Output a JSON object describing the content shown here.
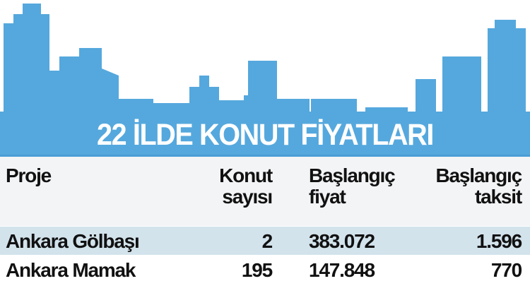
{
  "title": "22 İLDE KONUT FİYATLARI",
  "colors": {
    "banner": "#55a8dd",
    "header_bg": "#f3f4f6",
    "highlight_row": "#d3e3ec",
    "text": "#111111"
  },
  "table": {
    "headers": [
      {
        "line1": "Proje",
        "line2": ""
      },
      {
        "line1": "Konut",
        "line2": "sayısı"
      },
      {
        "line1": "Başlangıç",
        "line2": "fiyat"
      },
      {
        "line1": "Başlangıç",
        "line2": "taksit"
      }
    ],
    "rows": [
      [
        "Ankara Gölbaşı",
        "2",
        "383.072",
        "1.596"
      ],
      [
        "Ankara Mamak",
        "195",
        "147.848",
        "770"
      ]
    ]
  }
}
